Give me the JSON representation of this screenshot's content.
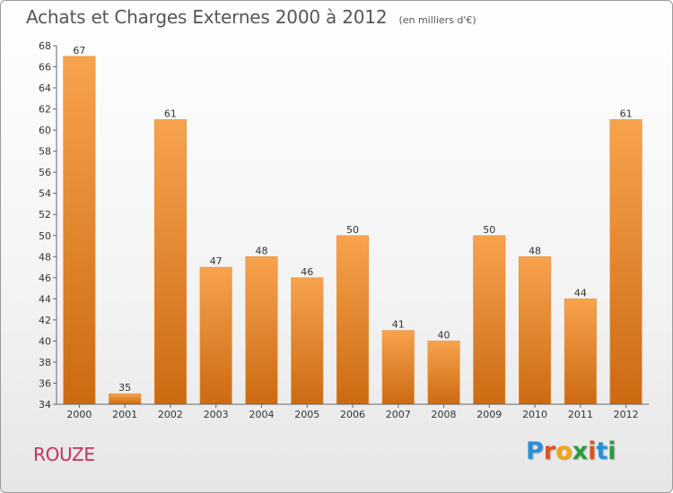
{
  "header": {
    "title": "Achats et Charges Externes 2000 à 2012",
    "subtitle": "(en milliers d'€)"
  },
  "footer": {
    "commune": "ROUZE",
    "logo_letters": [
      "P",
      "r",
      "o",
      "x",
      "i",
      "t",
      "i"
    ],
    "logo_colors": [
      "#2b8fd6",
      "#e0541c",
      "#f2a516",
      "#2a9d3c",
      "#e0541c",
      "#2b8fd6",
      "#2a9d3c"
    ]
  },
  "colors": {
    "bar_top": "#f7a34d",
    "bar_bottom": "#cc6a12",
    "axis": "#666666",
    "grid": "#d9d9d9"
  },
  "chart_data": {
    "type": "bar",
    "categories": [
      "2000",
      "2001",
      "2002",
      "2003",
      "2004",
      "2005",
      "2006",
      "2007",
      "2008",
      "2009",
      "2010",
      "2011",
      "2012"
    ],
    "values": [
      67,
      35,
      61,
      47,
      48,
      46,
      50,
      41,
      40,
      50,
      48,
      44,
      61
    ],
    "title": "Achats et Charges Externes 2000 à 2012",
    "subtitle": "(en milliers d'€)",
    "xlabel": "",
    "ylabel": "",
    "ylim": [
      34,
      68
    ],
    "yticks": [
      34,
      36,
      38,
      40,
      42,
      44,
      46,
      48,
      50,
      52,
      54,
      56,
      58,
      60,
      62,
      64,
      66,
      68
    ],
    "grid": false,
    "legend": "none"
  }
}
